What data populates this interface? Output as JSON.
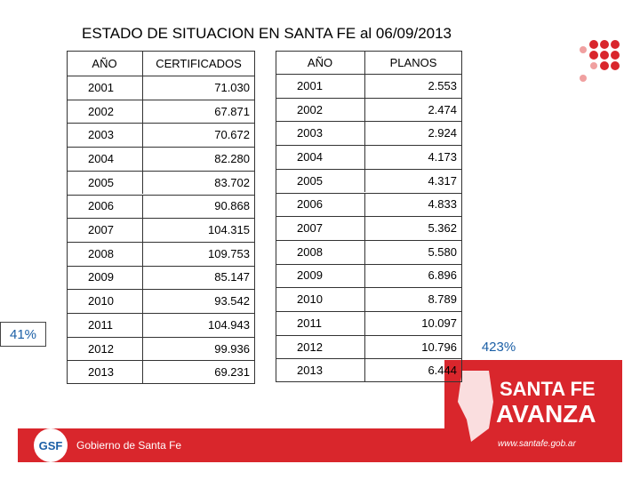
{
  "title": "ESTADO DE SITUACION EN SANTA FE al 06/09/2013",
  "certificados": {
    "headers": [
      "AÑO",
      "CERTIFICADOS"
    ],
    "rows": [
      [
        "2001",
        "71.030"
      ],
      [
        "2002",
        "67.871"
      ],
      [
        "2003",
        "70.672"
      ],
      [
        "2004",
        "82.280"
      ],
      [
        "2005",
        "83.702"
      ],
      [
        "2006",
        "90.868"
      ],
      [
        "2007",
        "104.315"
      ],
      [
        "2008",
        "109.753"
      ],
      [
        "2009",
        "85.147"
      ],
      [
        "2010",
        "93.542"
      ],
      [
        "2011",
        "104.943"
      ],
      [
        "2012",
        "99.936"
      ],
      [
        "2013",
        "69.231"
      ]
    ]
  },
  "planos": {
    "headers": [
      "AÑO",
      "PLANOS"
    ],
    "rows": [
      [
        "2001",
        "2.553"
      ],
      [
        "2002",
        "2.474"
      ],
      [
        "2003",
        "2.924"
      ],
      [
        "2004",
        "4.173"
      ],
      [
        "2005",
        "4.317"
      ],
      [
        "2006",
        "4.833"
      ],
      [
        "2007",
        "5.362"
      ],
      [
        "2008",
        "5.580"
      ],
      [
        "2009",
        "6.896"
      ],
      [
        "2010",
        "8.789"
      ],
      [
        "2011",
        "10.097"
      ],
      [
        "2012",
        "10.796"
      ],
      [
        "2013",
        "6.444"
      ]
    ]
  },
  "labels": {
    "left": "41%",
    "right": "423%"
  },
  "footer": {
    "logo": "GSF",
    "government": "Gobierno de Santa Fe",
    "brand_line1": "SANTA FE",
    "brand_line2": "AVANZA",
    "url": "www.santafe.gob.ar"
  }
}
